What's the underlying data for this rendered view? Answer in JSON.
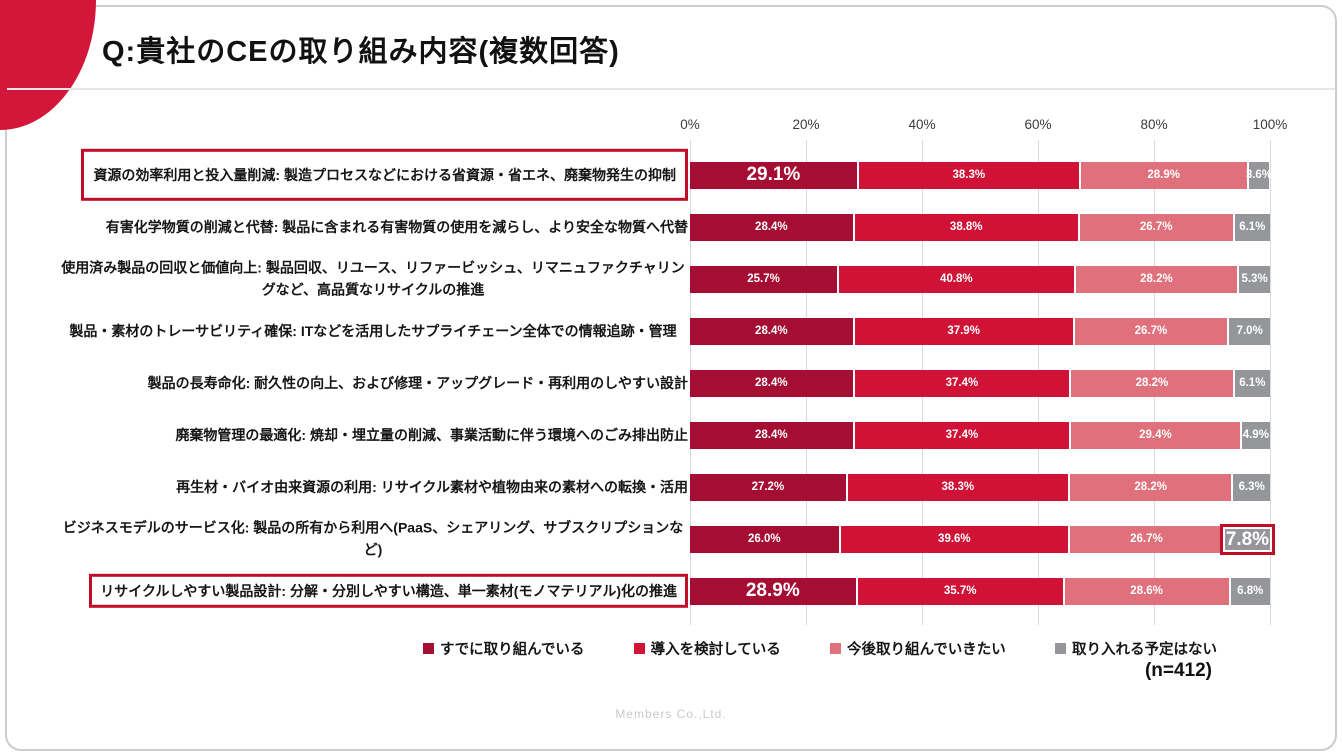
{
  "slide": {
    "title": "Q:貴社のCEの取り組み内容(複数回答)",
    "footer": "Members Co.,Ltd."
  },
  "colors": {
    "accent_red": "#C10E28",
    "corner_red": "#D2173A",
    "series": [
      "#A60D32",
      "#D01236",
      "#E0707B",
      "#949699"
    ]
  },
  "chart_data": {
    "type": "bar",
    "stacked": true,
    "orientation": "horizontal",
    "value_unit": "%",
    "x_ticks": [
      "0%",
      "20%",
      "40%",
      "60%",
      "80%",
      "100%"
    ],
    "x_range": [
      0,
      100
    ],
    "grid": true,
    "legend_position": "bottom",
    "n_label": "(n=412)",
    "sample_size": 412,
    "categories": [
      "資源の効率利用と投入量削減: 製造プロセスなどにおける省資源・省エネ、廃棄物発生の抑制",
      "有害化学物質の削減と代替: 製品に含まれる有害物質の使用を減らし、より安全な物質へ代替",
      "使用済み製品の回収と価値向上: 製品回収、リユース、リファービッシュ、リマニュファクチャリングなど、高品質なリサイクルの推進",
      "製品・素材のトレーサビリティ確保: ITなどを活用したサプライチェーン全体での情報追跡・管理",
      "製品の長寿命化: 耐久性の向上、および修理・アップグレード・再利用のしやすい設計",
      "廃棄物管理の最適化: 焼却・埋立量の削減、事業活動に伴う環境へのごみ排出防止",
      "再生材・バイオ由来資源の利用: リサイクル素材や植物由来の素材への転換・活用",
      "ビジネスモデルのサービス化: 製品の所有から利用へ(PaaS、シェアリング、サブスクリプションなど)",
      "リサイクルしやすい製品設計: 分解・分別しやすい構造、単一素材(モノマテリアル)化の推進"
    ],
    "series": [
      {
        "name": "すでに取り組んでいる",
        "color": "#A60D32",
        "values": [
          29.1,
          28.4,
          25.7,
          28.4,
          28.4,
          28.4,
          27.2,
          26.0,
          28.9
        ]
      },
      {
        "name": "導入を検討している",
        "color": "#D01236",
        "values": [
          38.3,
          38.8,
          40.8,
          37.9,
          37.4,
          37.4,
          38.3,
          39.6,
          35.7
        ]
      },
      {
        "name": "今後取り組んでいきたい",
        "color": "#E0707B",
        "values": [
          28.9,
          26.7,
          28.2,
          26.7,
          28.2,
          29.4,
          28.2,
          26.7,
          28.6
        ]
      },
      {
        "name": "取り入れる予定はない",
        "color": "#949699",
        "values": [
          3.6,
          6.1,
          5.3,
          7.0,
          6.1,
          4.9,
          6.3,
          7.8,
          6.8
        ]
      }
    ],
    "annotations": {
      "boxed_category_rows": [
        0,
        8
      ],
      "large_value_cells": [
        [
          0,
          0
        ],
        [
          8,
          0
        ]
      ],
      "boxed_value_cell": [
        7,
        3
      ]
    }
  }
}
